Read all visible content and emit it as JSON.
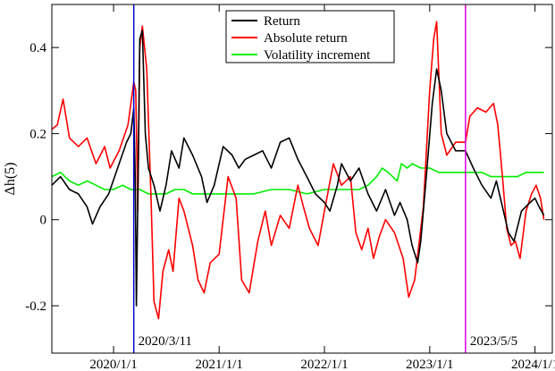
{
  "chart_data": {
    "type": "line",
    "title": "",
    "xlabel": "",
    "ylabel": "Δh(5)",
    "xlim": [
      "2019-06-01",
      "2024-03-01"
    ],
    "ylim": [
      -0.31,
      0.5
    ],
    "x_ticks": [
      {
        "date": "2020-01-01",
        "label": "2020/1/1"
      },
      {
        "date": "2021-01-01",
        "label": "2021/1/1"
      },
      {
        "date": "2022-01-01",
        "label": "2022/1/1"
      },
      {
        "date": "2023-01-01",
        "label": "2023/1/1"
      },
      {
        "date": "2024-01-01",
        "label": "2024/1/1"
      }
    ],
    "y_ticks": [
      {
        "value": -0.2,
        "label": "-0.2"
      },
      {
        "value": 0,
        "label": "0"
      },
      {
        "value": 0.2,
        "label": "0.2"
      },
      {
        "value": 0.4,
        "label": "0.4"
      }
    ],
    "legend_position": "top-center",
    "grid": false,
    "series": [
      {
        "name": "Return",
        "color": "#000000",
        "points": [
          [
            "2019-06-01",
            0.08
          ],
          [
            "2019-07-01",
            0.1
          ],
          [
            "2019-08-01",
            0.07
          ],
          [
            "2019-09-01",
            0.06
          ],
          [
            "2019-10-01",
            0.03
          ],
          [
            "2019-10-20",
            -0.01
          ],
          [
            "2019-11-15",
            0.03
          ],
          [
            "2019-12-15",
            0.06
          ],
          [
            "2020-01-15",
            0.12
          ],
          [
            "2020-02-15",
            0.18
          ],
          [
            "2020-03-01",
            0.2
          ],
          [
            "2020-03-11",
            0.26
          ],
          [
            "2020-03-16",
            0.1
          ],
          [
            "2020-03-20",
            -0.2
          ],
          [
            "2020-03-25",
            0.05
          ],
          [
            "2020-04-01",
            0.42
          ],
          [
            "2020-04-10",
            0.44
          ],
          [
            "2020-04-20",
            0.2
          ],
          [
            "2020-05-01",
            0.12
          ],
          [
            "2020-05-20",
            0.08
          ],
          [
            "2020-06-10",
            0.02
          ],
          [
            "2020-07-01",
            0.08
          ],
          [
            "2020-07-20",
            0.16
          ],
          [
            "2020-08-15",
            0.12
          ],
          [
            "2020-09-01",
            0.19
          ],
          [
            "2020-10-01",
            0.15
          ],
          [
            "2020-11-01",
            0.1
          ],
          [
            "2020-11-20",
            0.04
          ],
          [
            "2020-12-15",
            0.08
          ],
          [
            "2021-01-15",
            0.17
          ],
          [
            "2021-02-15",
            0.15
          ],
          [
            "2021-03-10",
            0.12
          ],
          [
            "2021-04-01",
            0.14
          ],
          [
            "2021-05-01",
            0.15
          ],
          [
            "2021-06-01",
            0.16
          ],
          [
            "2021-07-01",
            0.12
          ],
          [
            "2021-08-01",
            0.18
          ],
          [
            "2021-09-01",
            0.19
          ],
          [
            "2021-10-01",
            0.14
          ],
          [
            "2021-11-01",
            0.1
          ],
          [
            "2021-12-01",
            0.06
          ],
          [
            "2022-01-01",
            0.04
          ],
          [
            "2022-01-20",
            0.02
          ],
          [
            "2022-02-15",
            0.08
          ],
          [
            "2022-03-01",
            0.13
          ],
          [
            "2022-04-01",
            0.09
          ],
          [
            "2022-05-01",
            0.12
          ],
          [
            "2022-06-01",
            0.06
          ],
          [
            "2022-07-01",
            0.02
          ],
          [
            "2022-08-01",
            0.07
          ],
          [
            "2022-09-01",
            0.01
          ],
          [
            "2022-09-20",
            0.04
          ],
          [
            "2022-10-15",
            0.0
          ],
          [
            "2022-11-01",
            -0.06
          ],
          [
            "2022-11-20",
            -0.1
          ],
          [
            "2022-12-01",
            -0.05
          ],
          [
            "2022-12-20",
            0.1
          ],
          [
            "2023-01-10",
            0.27
          ],
          [
            "2023-01-25",
            0.35
          ],
          [
            "2023-02-10",
            0.3
          ],
          [
            "2023-03-01",
            0.2
          ],
          [
            "2023-04-01",
            0.16
          ],
          [
            "2023-05-05",
            0.16
          ],
          [
            "2023-06-01",
            0.12
          ],
          [
            "2023-07-01",
            0.08
          ],
          [
            "2023-08-01",
            0.05
          ],
          [
            "2023-08-20",
            0.09
          ],
          [
            "2023-09-10",
            0.03
          ],
          [
            "2023-10-01",
            -0.03
          ],
          [
            "2023-10-20",
            -0.05
          ],
          [
            "2023-11-15",
            0.02
          ],
          [
            "2023-12-15",
            0.04
          ],
          [
            "2024-01-01",
            0.05
          ],
          [
            "2024-01-15",
            0.03
          ],
          [
            "2024-02-01",
            0.01
          ]
        ]
      },
      {
        "name": "Absolute return",
        "color": "#ff0000",
        "points": [
          [
            "2019-06-01",
            0.21
          ],
          [
            "2019-06-20",
            0.22
          ],
          [
            "2019-07-10",
            0.28
          ],
          [
            "2019-08-01",
            0.19
          ],
          [
            "2019-09-01",
            0.17
          ],
          [
            "2019-10-01",
            0.19
          ],
          [
            "2019-11-01",
            0.13
          ],
          [
            "2019-12-01",
            0.17
          ],
          [
            "2019-12-20",
            0.12
          ],
          [
            "2020-01-20",
            0.16
          ],
          [
            "2020-02-20",
            0.22
          ],
          [
            "2020-03-11",
            0.32
          ],
          [
            "2020-03-18",
            0.3
          ],
          [
            "2020-03-25",
            0.02
          ],
          [
            "2020-04-01",
            0.4
          ],
          [
            "2020-04-10",
            0.45
          ],
          [
            "2020-04-25",
            0.35
          ],
          [
            "2020-05-10",
            0.05
          ],
          [
            "2020-05-20",
            -0.19
          ],
          [
            "2020-06-05",
            -0.23
          ],
          [
            "2020-06-20",
            -0.12
          ],
          [
            "2020-07-10",
            -0.07
          ],
          [
            "2020-07-25",
            -0.12
          ],
          [
            "2020-08-15",
            0.05
          ],
          [
            "2020-09-01",
            0.02
          ],
          [
            "2020-10-01",
            -0.06
          ],
          [
            "2020-10-20",
            -0.14
          ],
          [
            "2020-11-10",
            -0.17
          ],
          [
            "2020-12-01",
            -0.1
          ],
          [
            "2021-01-01",
            -0.08
          ],
          [
            "2021-02-01",
            0.1
          ],
          [
            "2021-03-01",
            0.05
          ],
          [
            "2021-03-20",
            -0.14
          ],
          [
            "2021-04-15",
            -0.17
          ],
          [
            "2021-05-15",
            -0.05
          ],
          [
            "2021-06-10",
            0.02
          ],
          [
            "2021-07-01",
            -0.06
          ],
          [
            "2021-08-01",
            0.01
          ],
          [
            "2021-09-01",
            -0.02
          ],
          [
            "2021-10-01",
            0.08
          ],
          [
            "2021-10-20",
            0.03
          ],
          [
            "2021-11-10",
            -0.02
          ],
          [
            "2021-12-10",
            -0.06
          ],
          [
            "2022-01-01",
            0.02
          ],
          [
            "2022-02-01",
            0.13
          ],
          [
            "2022-03-01",
            0.08
          ],
          [
            "2022-04-01",
            0.1
          ],
          [
            "2022-04-20",
            -0.03
          ],
          [
            "2022-05-10",
            -0.07
          ],
          [
            "2022-06-01",
            -0.02
          ],
          [
            "2022-06-20",
            -0.09
          ],
          [
            "2022-07-10",
            -0.04
          ],
          [
            "2022-08-01",
            0.0
          ],
          [
            "2022-09-01",
            -0.03
          ],
          [
            "2022-10-01",
            -0.09
          ],
          [
            "2022-10-20",
            -0.18
          ],
          [
            "2022-11-10",
            -0.14
          ],
          [
            "2022-12-10",
            0.03
          ],
          [
            "2023-01-01",
            0.3
          ],
          [
            "2023-01-15",
            0.42
          ],
          [
            "2023-01-25",
            0.46
          ],
          [
            "2023-02-10",
            0.2
          ],
          [
            "2023-03-01",
            0.15
          ],
          [
            "2023-04-01",
            0.18
          ],
          [
            "2023-05-05",
            0.18
          ],
          [
            "2023-05-20",
            0.24
          ],
          [
            "2023-06-15",
            0.26
          ],
          [
            "2023-07-15",
            0.25
          ],
          [
            "2023-08-10",
            0.27
          ],
          [
            "2023-08-25",
            0.22
          ],
          [
            "2023-09-10",
            0.1
          ],
          [
            "2023-09-25",
            -0.02
          ],
          [
            "2023-10-10",
            -0.06
          ],
          [
            "2023-10-25",
            -0.05
          ],
          [
            "2023-11-10",
            -0.09
          ],
          [
            "2023-12-01",
            0.02
          ],
          [
            "2023-12-20",
            0.06
          ],
          [
            "2024-01-05",
            0.08
          ],
          [
            "2024-01-20",
            0.05
          ],
          [
            "2024-02-01",
            0.0
          ]
        ]
      },
      {
        "name": "Volatility increment",
        "color": "#00ee00",
        "points": [
          [
            "2019-06-01",
            0.1
          ],
          [
            "2019-07-01",
            0.11
          ],
          [
            "2019-08-01",
            0.09
          ],
          [
            "2019-09-01",
            0.08
          ],
          [
            "2019-10-01",
            0.09
          ],
          [
            "2019-11-01",
            0.08
          ],
          [
            "2019-12-01",
            0.07
          ],
          [
            "2020-01-01",
            0.07
          ],
          [
            "2020-02-01",
            0.08
          ],
          [
            "2020-03-01",
            0.07
          ],
          [
            "2020-04-01",
            0.07
          ],
          [
            "2020-05-01",
            0.06
          ],
          [
            "2020-06-01",
            0.06
          ],
          [
            "2020-07-01",
            0.06
          ],
          [
            "2020-08-01",
            0.07
          ],
          [
            "2020-09-01",
            0.07
          ],
          [
            "2020-10-01",
            0.06
          ],
          [
            "2020-11-01",
            0.06
          ],
          [
            "2021-01-01",
            0.06
          ],
          [
            "2021-03-01",
            0.06
          ],
          [
            "2021-05-01",
            0.06
          ],
          [
            "2021-07-01",
            0.07
          ],
          [
            "2021-09-01",
            0.07
          ],
          [
            "2021-11-01",
            0.06
          ],
          [
            "2022-01-01",
            0.07
          ],
          [
            "2022-03-01",
            0.07
          ],
          [
            "2022-05-01",
            0.07
          ],
          [
            "2022-06-01",
            0.08
          ],
          [
            "2022-07-01",
            0.1
          ],
          [
            "2022-07-20",
            0.12
          ],
          [
            "2022-08-10",
            0.11
          ],
          [
            "2022-09-10",
            0.09
          ],
          [
            "2022-09-25",
            0.13
          ],
          [
            "2022-10-15",
            0.12
          ],
          [
            "2022-11-01",
            0.13
          ],
          [
            "2022-12-01",
            0.12
          ],
          [
            "2023-01-01",
            0.12
          ],
          [
            "2023-02-01",
            0.11
          ],
          [
            "2023-03-01",
            0.11
          ],
          [
            "2023-04-01",
            0.11
          ],
          [
            "2023-05-05",
            0.11
          ],
          [
            "2023-06-01",
            0.11
          ],
          [
            "2023-07-01",
            0.11
          ],
          [
            "2023-08-01",
            0.1
          ],
          [
            "2023-09-01",
            0.1
          ],
          [
            "2023-10-01",
            0.1
          ],
          [
            "2023-11-01",
            0.1
          ],
          [
            "2023-12-01",
            0.11
          ],
          [
            "2024-01-01",
            0.11
          ],
          [
            "2024-02-01",
            0.11
          ]
        ]
      }
    ],
    "annotations": [
      {
        "date": "2020-03-11",
        "label": "2020/3/11",
        "color": "#0000cc"
      },
      {
        "date": "2023-05-05",
        "label": "2023/5/5",
        "color": "#dd00dd"
      }
    ]
  }
}
